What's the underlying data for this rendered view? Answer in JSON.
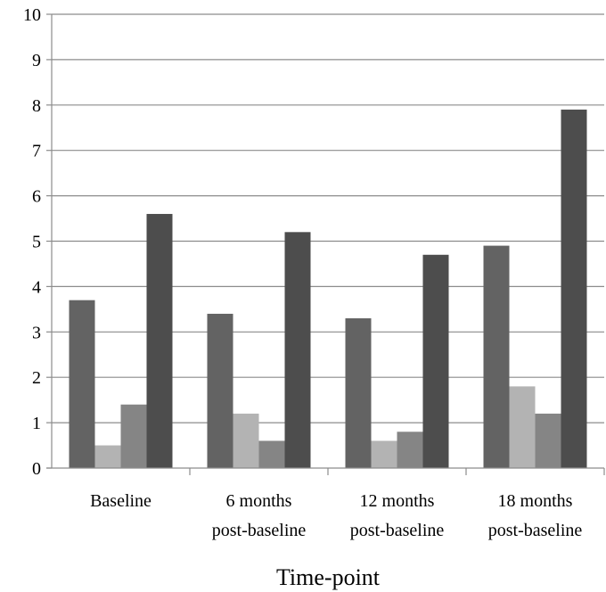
{
  "chart_data": {
    "type": "bar",
    "title": "",
    "xlabel": "Time-point",
    "ylabel": "",
    "ylim": [
      0,
      10
    ],
    "yticks": [
      "0",
      "1",
      "2",
      "3",
      "4",
      "5",
      "6",
      "7",
      "8",
      "9",
      "10"
    ],
    "grid": "horizontal",
    "legend": "none",
    "categories": [
      [
        "Baseline"
      ],
      [
        "6 months",
        "post-baseline"
      ],
      [
        "12 months",
        "post-baseline"
      ],
      [
        "18 months",
        "post-baseline"
      ]
    ],
    "series": [
      {
        "color": "#636363",
        "values": [
          3.7,
          3.4,
          3.3,
          4.9
        ]
      },
      {
        "color": "#b3b3b3",
        "values": [
          0.5,
          1.2,
          0.6,
          1.8
        ]
      },
      {
        "color": "#858585",
        "values": [
          1.4,
          0.6,
          0.8,
          1.2
        ]
      },
      {
        "color": "#4d4d4d",
        "values": [
          5.6,
          5.2,
          4.7,
          7.9
        ]
      }
    ]
  }
}
